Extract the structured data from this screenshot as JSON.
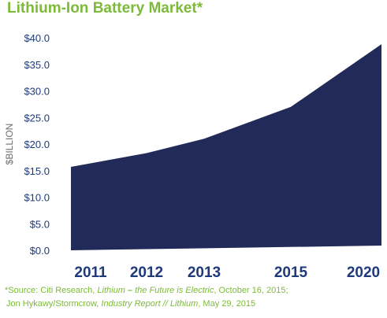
{
  "chart_data": {
    "type": "area",
    "title": "Lithium-Ion Battery Market*",
    "ylabel": "$BILLION",
    "xlabel": "",
    "categories": [
      "2011",
      "2012",
      "2013",
      "2015",
      "2020"
    ],
    "series": [
      {
        "values": [
          15.7,
          18.3,
          21.0,
          27.0,
          38.8
        ]
      }
    ],
    "ylim": [
      0,
      40
    ],
    "yticks": [
      "$0.0",
      "$5.0",
      "$10.0",
      "$15.0",
      "$20.0",
      "$25.0",
      "$30.0",
      "$35.0",
      "$40.0"
    ],
    "grid": false,
    "legend": "none",
    "fill_color": "#212a58"
  },
  "source": {
    "line1_prefix": "*Source: Citi Research, ",
    "line1_title_a": "Lithium",
    "line1_dash": " – ",
    "line1_title_b": "the Future is Electric",
    "line1_suffix": ", October 16, 2015;",
    "line2_prefix": "Jon Hykawy/Stormcrow, ",
    "line2_title": "Industry Report // Lithium",
    "line2_suffix": ", May 29, 2015"
  },
  "colors": {
    "title": "#7dba3a",
    "axis_text": "#1f3a7a",
    "ylabel_text": "#6b6b6b",
    "source_text": "#7dba3a"
  }
}
